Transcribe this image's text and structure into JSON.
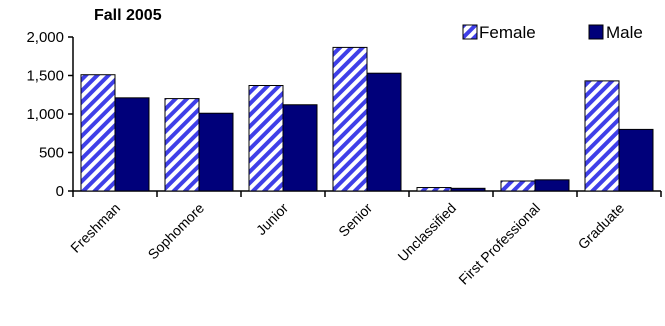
{
  "chart_data": {
    "type": "bar",
    "title": "Fall 2005",
    "categories": [
      "Freshman",
      "Sophomore",
      "Junior",
      "Senior",
      "Unclassified",
      "First Professional",
      "Graduate"
    ],
    "series": [
      {
        "name": "Female",
        "values": [
          1510,
          1200,
          1370,
          1865,
          45,
          130,
          1430
        ],
        "color": "#00007a",
        "fill": "hatched"
      },
      {
        "name": "Male",
        "values": [
          1210,
          1010,
          1120,
          1530,
          35,
          145,
          800
        ],
        "color": "#00007a",
        "fill": "solid"
      }
    ],
    "yticks": [
      "0",
      "500",
      "1,000",
      "1,500",
      "2,000"
    ],
    "ylim": [
      0,
      2000
    ],
    "legend_position": "top-right",
    "grid": false
  }
}
